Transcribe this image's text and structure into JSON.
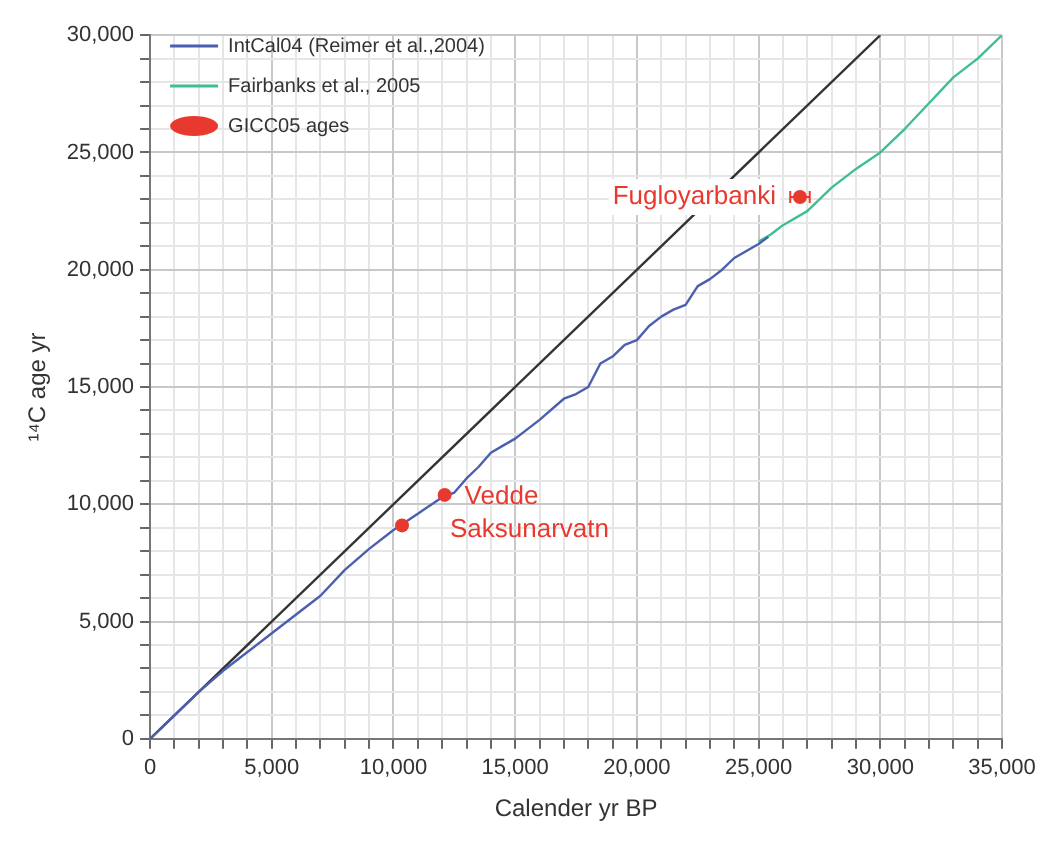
{
  "chart_data": {
    "type": "line",
    "xlabel": "Calender yr BP",
    "ylabel": "¹⁴C age yr",
    "xlim": [
      0,
      35000
    ],
    "ylim": [
      0,
      30000
    ],
    "xticks": [
      0,
      {
        "value": 1000,
        "label": null
      },
      {
        "value": 2000,
        "label": null
      },
      {
        "value": 3000,
        "label": null
      },
      {
        "value": 4000,
        "label": null
      },
      {
        "value": 5000,
        "label": "5,000"
      },
      {
        "value": 6000,
        "label": null
      },
      {
        "value": 7000,
        "label": null
      },
      {
        "value": 8000,
        "label": null
      },
      {
        "value": 9000,
        "label": null
      },
      {
        "value": 10000,
        "label": "10,000"
      },
      {
        "value": 11000,
        "label": null
      },
      {
        "value": 12000,
        "label": null
      },
      {
        "value": 13000,
        "label": null
      },
      {
        "value": 14000,
        "label": null
      },
      {
        "value": 15000,
        "label": "15,000"
      },
      {
        "value": 16000,
        "label": null
      },
      {
        "value": 17000,
        "label": null
      },
      {
        "value": 18000,
        "label": null
      },
      {
        "value": 19000,
        "label": null
      },
      {
        "value": 20000,
        "label": "20,000"
      },
      {
        "value": 21000,
        "label": null
      },
      {
        "value": 22000,
        "label": null
      },
      {
        "value": 23000,
        "label": null
      },
      {
        "value": 24000,
        "label": null
      },
      {
        "value": 25000,
        "label": "25,000"
      },
      {
        "value": 26000,
        "label": null
      },
      {
        "value": 27000,
        "label": null
      },
      {
        "value": 28000,
        "label": null
      },
      {
        "value": 29000,
        "label": null
      },
      {
        "value": 30000,
        "label": "30,000"
      },
      {
        "value": 31000,
        "label": null
      },
      {
        "value": 32000,
        "label": null
      },
      {
        "value": 33000,
        "label": null
      },
      {
        "value": 34000,
        "label": null
      },
      {
        "value": 35000,
        "label": "35,000"
      }
    ],
    "yticks": [
      0,
      {
        "value": 1000,
        "label": null
      },
      {
        "value": 2000,
        "label": null
      },
      {
        "value": 3000,
        "label": null
      },
      {
        "value": 4000,
        "label": null
      },
      {
        "value": 5000,
        "label": "5,000"
      },
      {
        "value": 6000,
        "label": null
      },
      {
        "value": 7000,
        "label": null
      },
      {
        "value": 8000,
        "label": null
      },
      {
        "value": 9000,
        "label": null
      },
      {
        "value": 10000,
        "label": "10,000"
      },
      {
        "value": 11000,
        "label": null
      },
      {
        "value": 12000,
        "label": null
      },
      {
        "value": 13000,
        "label": null
      },
      {
        "value": 14000,
        "label": null
      },
      {
        "value": 15000,
        "label": "15,000"
      },
      {
        "value": 16000,
        "label": null
      },
      {
        "value": 17000,
        "label": null
      },
      {
        "value": 18000,
        "label": null
      },
      {
        "value": 19000,
        "label": null
      },
      {
        "value": 20000,
        "label": "20,000"
      },
      {
        "value": 21000,
        "label": null
      },
      {
        "value": 22000,
        "label": null
      },
      {
        "value": 23000,
        "label": null
      },
      {
        "value": 24000,
        "label": null
      },
      {
        "value": 25000,
        "label": "25,000"
      },
      {
        "value": 26000,
        "label": null
      },
      {
        "value": 27000,
        "label": null
      },
      {
        "value": 28000,
        "label": null
      },
      {
        "value": 29000,
        "label": null
      },
      {
        "value": 30000,
        "label": "30,000"
      }
    ],
    "grid": true,
    "legend": "top left",
    "marker": "none",
    "series": [
      {
        "name": "IntCal04 (Reimer et al.,2004)",
        "color": "#4a5fae",
        "x": [
          0,
          1000,
          2000,
          3000,
          4000,
          5000,
          6000,
          7000,
          8000,
          9000,
          10000,
          11000,
          11500,
          12000,
          12500,
          13000,
          13500,
          14000,
          14500,
          15000,
          16000,
          17000,
          17500,
          18000,
          18500,
          19000,
          19500,
          20000,
          20500,
          21000,
          21500,
          22000,
          22500,
          23000,
          23500,
          24000,
          24500,
          25000,
          25400
        ],
        "values": [
          0,
          1000,
          2000,
          2900,
          3700,
          4500,
          5300,
          6100,
          7200,
          8100,
          8900,
          9600,
          9950,
          10300,
          10500,
          11100,
          11600,
          12200,
          12500,
          12800,
          13600,
          14500,
          14700,
          15000,
          16000,
          16300,
          16800,
          17000,
          17600,
          18000,
          18300,
          18500,
          19300,
          19600,
          20000,
          20500,
          20800,
          21100,
          21400
        ]
      },
      {
        "name": "Fairbanks et al., 2005",
        "color": "#3fbf8f",
        "x": [
          25000,
          25500,
          26000,
          27000,
          28000,
          29000,
          30000,
          31000,
          32000,
          33000,
          34000,
          35000
        ],
        "values": [
          21200,
          21500,
          21900,
          22500,
          23500,
          24300,
          25000,
          26000,
          27100,
          28200,
          29000,
          30000
        ]
      },
      {
        "color": "#333333",
        "x": [
          0,
          30000
        ],
        "values": [
          0,
          30000
        ]
      },
      {
        "name": "GICC05 ages",
        "type": "scatter",
        "marker": "circle",
        "color": "#e8392f",
        "x": [
          10350,
          12100,
          26700
        ],
        "values": [
          9100,
          10400,
          23100
        ],
        "xerrors": [
          null,
          null,
          400
        ]
      }
    ],
    "annotations": [
      {
        "text": "Vedde",
        "x": 12100,
        "y": 10400
      },
      {
        "text": "Saksunarvatn",
        "x": 10350,
        "y": 9100
      },
      {
        "text": "Fugloyarbanki",
        "x": 26700,
        "y": 23100
      }
    ]
  }
}
